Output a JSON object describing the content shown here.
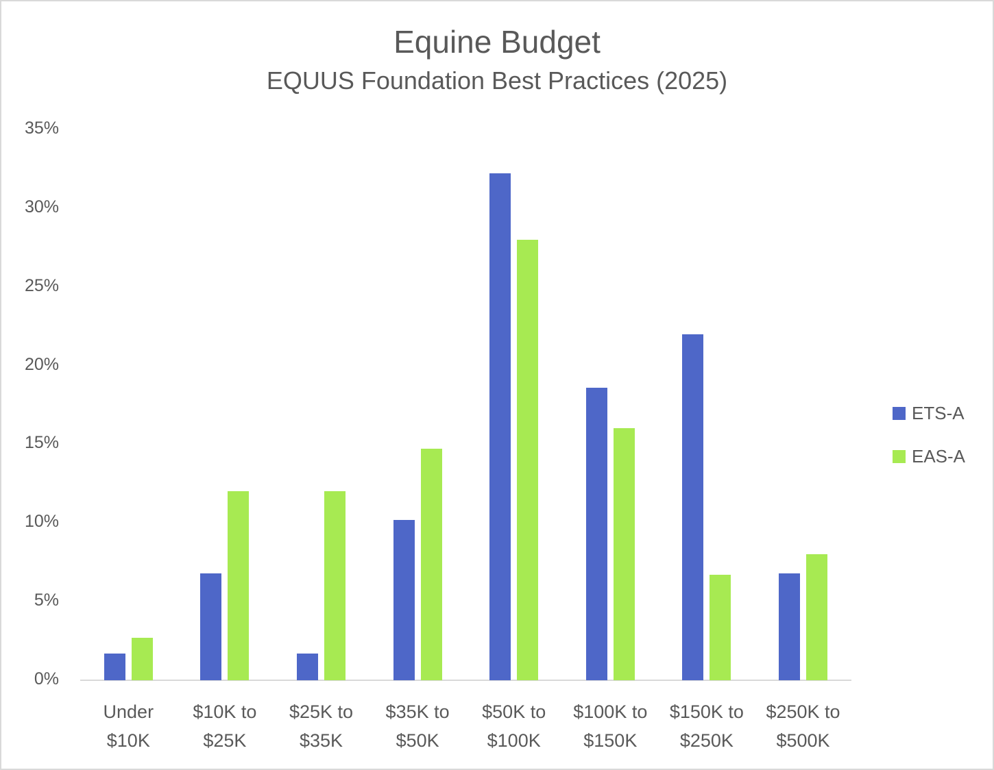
{
  "colors": {
    "ets_a": "#4e67c8",
    "eas_a": "#a7ea52",
    "text": "#595959",
    "axis": "#d9d9d9",
    "border": "#d9d9d9"
  },
  "header": {
    "title": "Equine Budget",
    "subtitle": "EQUUS Foundation Best Practices (2025)"
  },
  "y_axis": {
    "ticks": [
      "0%",
      "5%",
      "10%",
      "15%",
      "20%",
      "25%",
      "30%",
      "35%"
    ]
  },
  "x_axis": {
    "labels": [
      {
        "line1": "Under",
        "line2": "$10K"
      },
      {
        "line1": "$10K to",
        "line2": "$25K"
      },
      {
        "line1": "$25K to",
        "line2": "$35K"
      },
      {
        "line1": "$35K to",
        "line2": "$50K"
      },
      {
        "line1": "$50K to",
        "line2": "$100K"
      },
      {
        "line1": "$100K to",
        "line2": "$150K"
      },
      {
        "line1": "$150K to",
        "line2": "$250K"
      },
      {
        "line1": "$250K to",
        "line2": "$500K"
      }
    ]
  },
  "legend": {
    "items": [
      {
        "label": "ETS-A",
        "color": "#4e67c8"
      },
      {
        "label": "EAS-A",
        "color": "#a7ea52"
      }
    ]
  },
  "chart_data": {
    "type": "bar",
    "title": "Equine Budget",
    "subtitle": "EQUUS Foundation Best Practices (2025)",
    "xlabel": "",
    "ylabel": "",
    "categories": [
      "Under $10K",
      "$10K to $25K",
      "$25K to $35K",
      "$35K to $50K",
      "$50K to $100K",
      "$100K to $150K",
      "$150K to $250K",
      "$250K to $500K"
    ],
    "series": [
      {
        "name": "ETS-A",
        "color": "#4e67c8",
        "values": [
          1.7,
          6.8,
          1.7,
          10.2,
          32.2,
          18.6,
          22.0,
          6.8
        ]
      },
      {
        "name": "EAS-A",
        "color": "#a7ea52",
        "values": [
          2.7,
          12.0,
          12.0,
          14.7,
          28.0,
          16.0,
          6.7,
          8.0
        ]
      }
    ],
    "ylim": [
      0,
      35
    ],
    "y_ticks": [
      0,
      5,
      10,
      15,
      20,
      25,
      30,
      35
    ],
    "y_format": "percent",
    "grid": false,
    "legend_position": "right"
  }
}
